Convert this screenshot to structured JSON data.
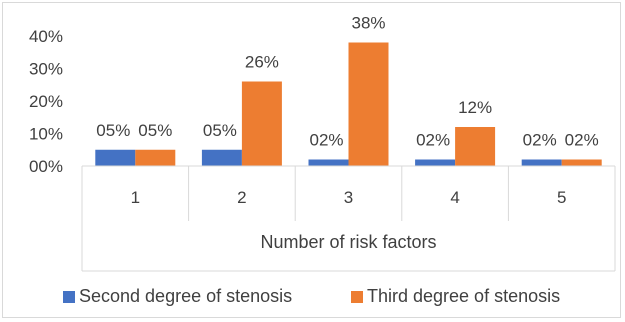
{
  "chart_data": {
    "type": "bar",
    "categories": [
      "1",
      "2",
      "3",
      "4",
      "5"
    ],
    "xlabel": "Number of risk factors",
    "ylabel": "",
    "ylim": [
      0,
      40
    ],
    "yticks": [
      "00%",
      "10%",
      "20%",
      "30%",
      "40%"
    ],
    "gridlines": false,
    "legend_position": "bottom",
    "series": [
      {
        "name": "Second degree of stenosis",
        "color": "#4472C4",
        "values": [
          5,
          5,
          2,
          2,
          2
        ],
        "labels": [
          "05%",
          "05%",
          "02%",
          "02%",
          "02%"
        ]
      },
      {
        "name": "Third degree of stenosis",
        "color": "#ED7D31",
        "values": [
          5,
          26,
          38,
          12,
          2
        ],
        "labels": [
          "05%",
          "26%",
          "38%",
          "12%",
          "02%"
        ]
      }
    ]
  }
}
